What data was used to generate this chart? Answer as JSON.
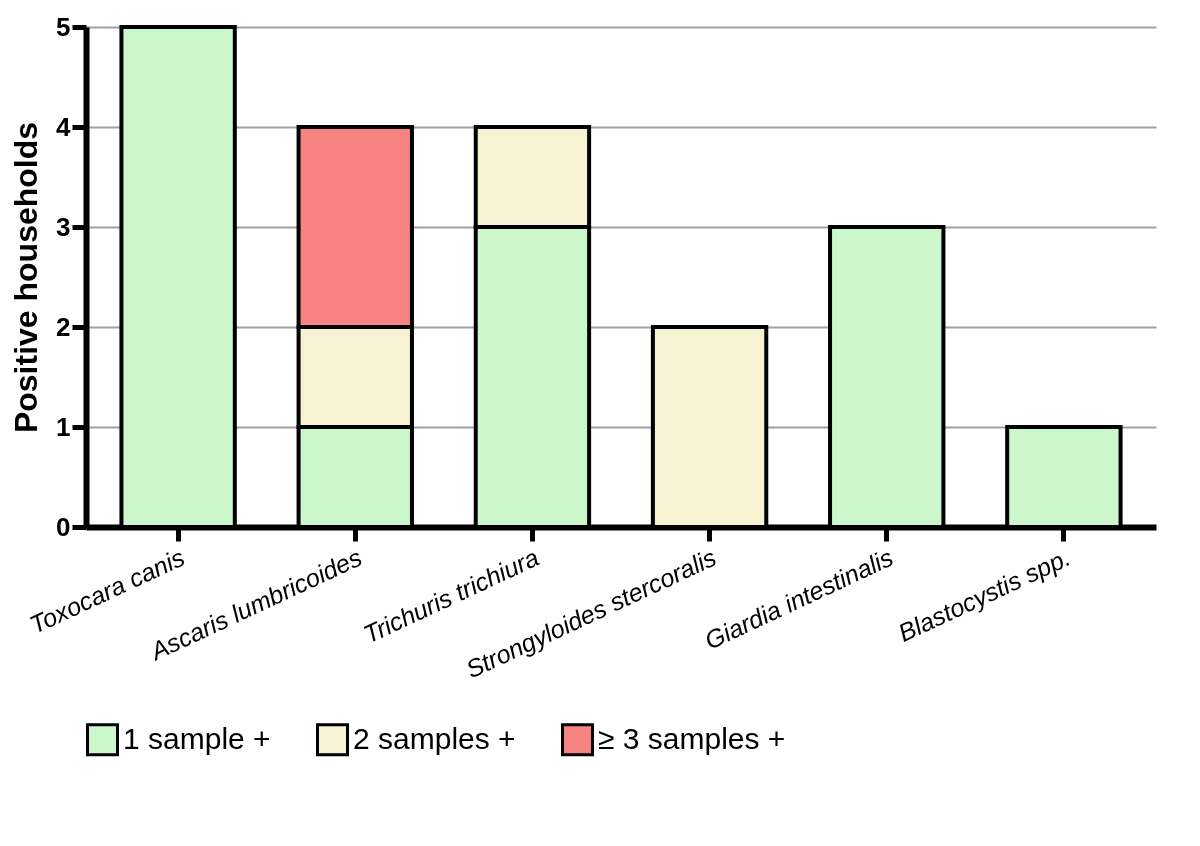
{
  "chart_data": {
    "type": "bar",
    "stacked": true,
    "ylabel": "Positive households",
    "categories": [
      "Toxocara canis",
      "Ascaris lumbricoides",
      "Trichuris trichiura",
      "Strongyloides stercoralis",
      "Giardia intestinalis",
      "Blastocystis spp."
    ],
    "series": [
      {
        "name": "1 sample +",
        "color": "#ccf7cc",
        "values": [
          5,
          1,
          3,
          null,
          3,
          1
        ]
      },
      {
        "name": "2 samples +",
        "color": "#f7f3d2",
        "values": [
          null,
          1,
          1,
          2,
          null,
          null
        ]
      },
      {
        "name": "≥ 3 samples +",
        "color": "#f78383",
        "values": [
          null,
          2,
          null,
          null,
          null,
          null
        ]
      }
    ],
    "ylim": [
      0,
      5
    ],
    "yticks": [
      0,
      1,
      2,
      3,
      4,
      5
    ],
    "grid": "y",
    "legend": "bottom"
  }
}
